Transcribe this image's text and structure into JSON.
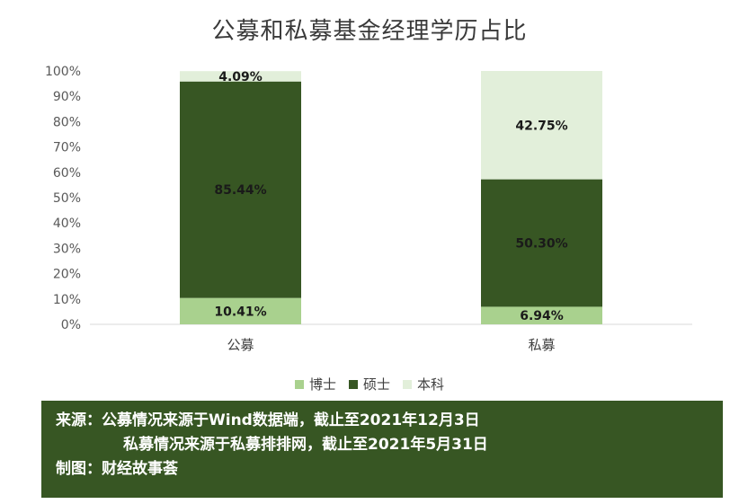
{
  "chart_data": {
    "type": "bar",
    "stacked": true,
    "title": "公募和私募基金经理学历占比",
    "categories": [
      "公募",
      "私募"
    ],
    "series": [
      {
        "name": "博士",
        "color": "#a9d18e",
        "values": [
          10.41,
          6.94
        ],
        "labels": [
          "10.41%",
          "6.94%"
        ]
      },
      {
        "name": "硕士",
        "color": "#375623",
        "values": [
          85.44,
          50.3
        ],
        "labels": [
          "85.44%",
          "50.30%"
        ]
      },
      {
        "name": "本科",
        "color": "#e2efda",
        "values": [
          4.09,
          42.75
        ],
        "labels": [
          "4.09%",
          "42.75%"
        ]
      }
    ],
    "ylim": [
      0,
      100
    ],
    "yticks": [
      "0%",
      "10%",
      "20%",
      "30%",
      "40%",
      "50%",
      "60%",
      "70%",
      "80%",
      "90%",
      "100%"
    ],
    "legend_position": "bottom",
    "grid": false
  },
  "footer": {
    "line1": "来源：公募情况来源于Wind数据端，截止至2021年12月3日",
    "line2": "私募情况来源于私募排排网，截止至2021年5月31日",
    "line3": "制图：财经故事荟",
    "background": "#375623"
  }
}
